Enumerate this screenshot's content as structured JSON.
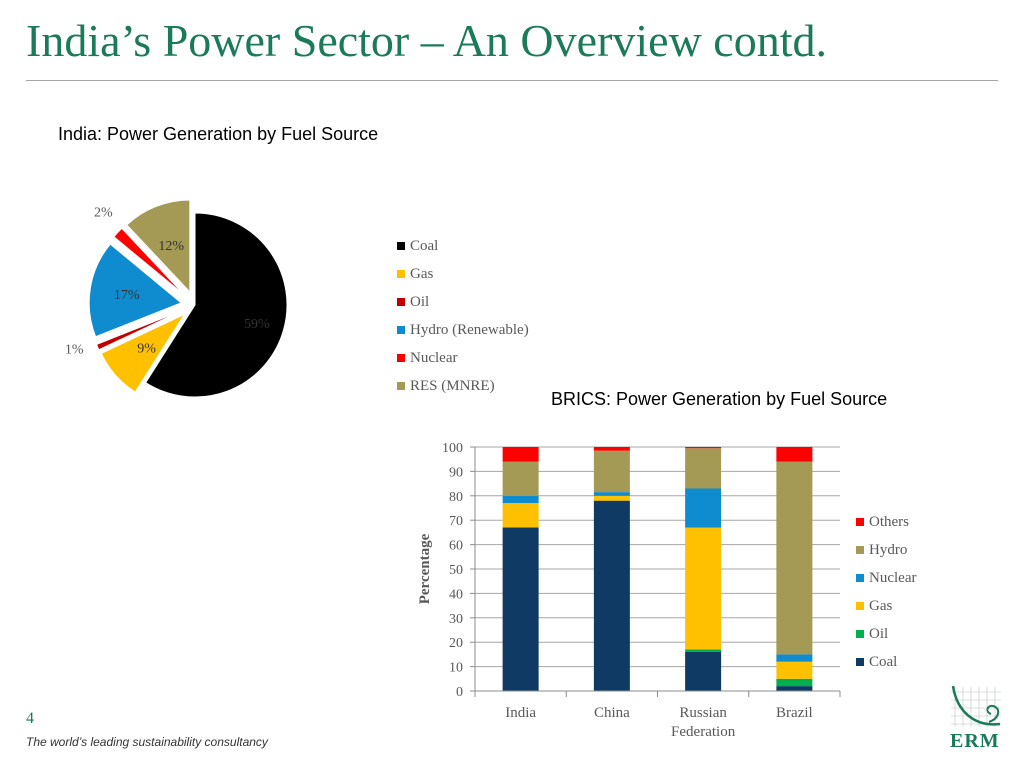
{
  "slide": {
    "title": "India’s Power Sector – An Overview contd.",
    "page_number": "4",
    "footer": "The world’s leading sustainability consultancy",
    "logo_text": "ERM"
  },
  "chart_data": [
    {
      "type": "pie",
      "title": "India: Power Generation by Fuel Source",
      "labels": [
        "Coal",
        "Gas",
        "Oil",
        "Hydro (Renewable)",
        "Nuclear",
        "RES (MNRE)"
      ],
      "values": [
        59,
        9,
        1,
        17,
        2,
        12
      ],
      "value_labels": [
        "59%",
        "9%",
        "1%",
        "17%",
        "2%",
        "12%"
      ],
      "colors": [
        "#000000",
        "#ffc000",
        "#c00000",
        "#0f8bd0",
        "#ff0000",
        "#a59a55"
      ],
      "legend_position": "right"
    },
    {
      "type": "bar",
      "stacked": true,
      "title": "BRICS: Power Generation by Fuel Source",
      "categories": [
        "India",
        "China",
        "Russian Federation",
        "Brazil"
      ],
      "category_lines": [
        [
          "India"
        ],
        [
          "China"
        ],
        [
          "Russian",
          "Federation"
        ],
        [
          "Brazil"
        ]
      ],
      "series": [
        {
          "name": "Coal",
          "color": "#0e3a63",
          "values": [
            67,
            78,
            16,
            2
          ]
        },
        {
          "name": "Oil",
          "color": "#00b050",
          "values": [
            0,
            0,
            1,
            3
          ]
        },
        {
          "name": "Gas",
          "color": "#ffc000",
          "values": [
            10,
            2,
            50,
            7
          ]
        },
        {
          "name": "Nuclear",
          "color": "#0f8bd0",
          "values": [
            3,
            1.5,
            16,
            3
          ]
        },
        {
          "name": "Hydro",
          "color": "#a59a55",
          "values": [
            14,
            17,
            16.5,
            79
          ]
        },
        {
          "name": "Others",
          "color": "#ff0000",
          "values": [
            6,
            1.5,
            0.5,
            6
          ]
        }
      ],
      "legend_order": [
        "Others",
        "Hydro",
        "Nuclear",
        "Gas",
        "Oil",
        "Coal"
      ],
      "ylabel": "Percentage",
      "xlabel": "",
      "ylim": [
        0,
        100
      ],
      "yticks": [
        0,
        10,
        20,
        30,
        40,
        50,
        60,
        70,
        80,
        90,
        100
      ],
      "grid": true,
      "legend_position": "right"
    }
  ]
}
